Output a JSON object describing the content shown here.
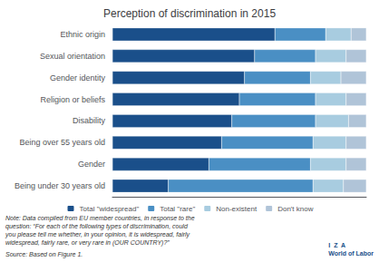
{
  "chart_data": {
    "type": "bar",
    "orientation": "horizontal",
    "stacked": true,
    "title": "Perception of discrimination in 2015",
    "categories": [
      "Ethnic origin",
      "Sexual orientation",
      "Gender identity",
      "Religion or beliefs",
      "Disability",
      "Being over 55 years old",
      "Gender",
      "Being under 30 years old"
    ],
    "series": [
      {
        "name": "Total \"widespread\"",
        "color": "#1a4f8a",
        "values": [
          64,
          56,
          52,
          50,
          47,
          43,
          38,
          22
        ]
      },
      {
        "name": "Total \"rare\"",
        "color": "#4a8fc4",
        "values": [
          20,
          24,
          26,
          30,
          33,
          36,
          40,
          57
        ]
      },
      {
        "name": "Non-existent",
        "color": "#a8cce0",
        "values": [
          10,
          12,
          12,
          12,
          13,
          13,
          14,
          12
        ]
      },
      {
        "name": "Don't know",
        "color": "#b0c4d8",
        "values": [
          6,
          8,
          10,
          8,
          7,
          8,
          8,
          9
        ]
      }
    ],
    "xlim": [
      0,
      100
    ],
    "tick_labels": "y",
    "grid": false,
    "legend": "bottom",
    "annotations": [
      "Note: Data compiled from EU member countries, in response to the\nquestion: “For each of the following types of discrimination, could\nyou please tell me whether, in your opinion, it is widespread, fairly\nwidespread, fairly rare, or very rare in (OUR COUNTRY)?”",
      "Source: Based on Figure 1.",
      "I  Z  A\nWorld of Labor"
    ]
  }
}
